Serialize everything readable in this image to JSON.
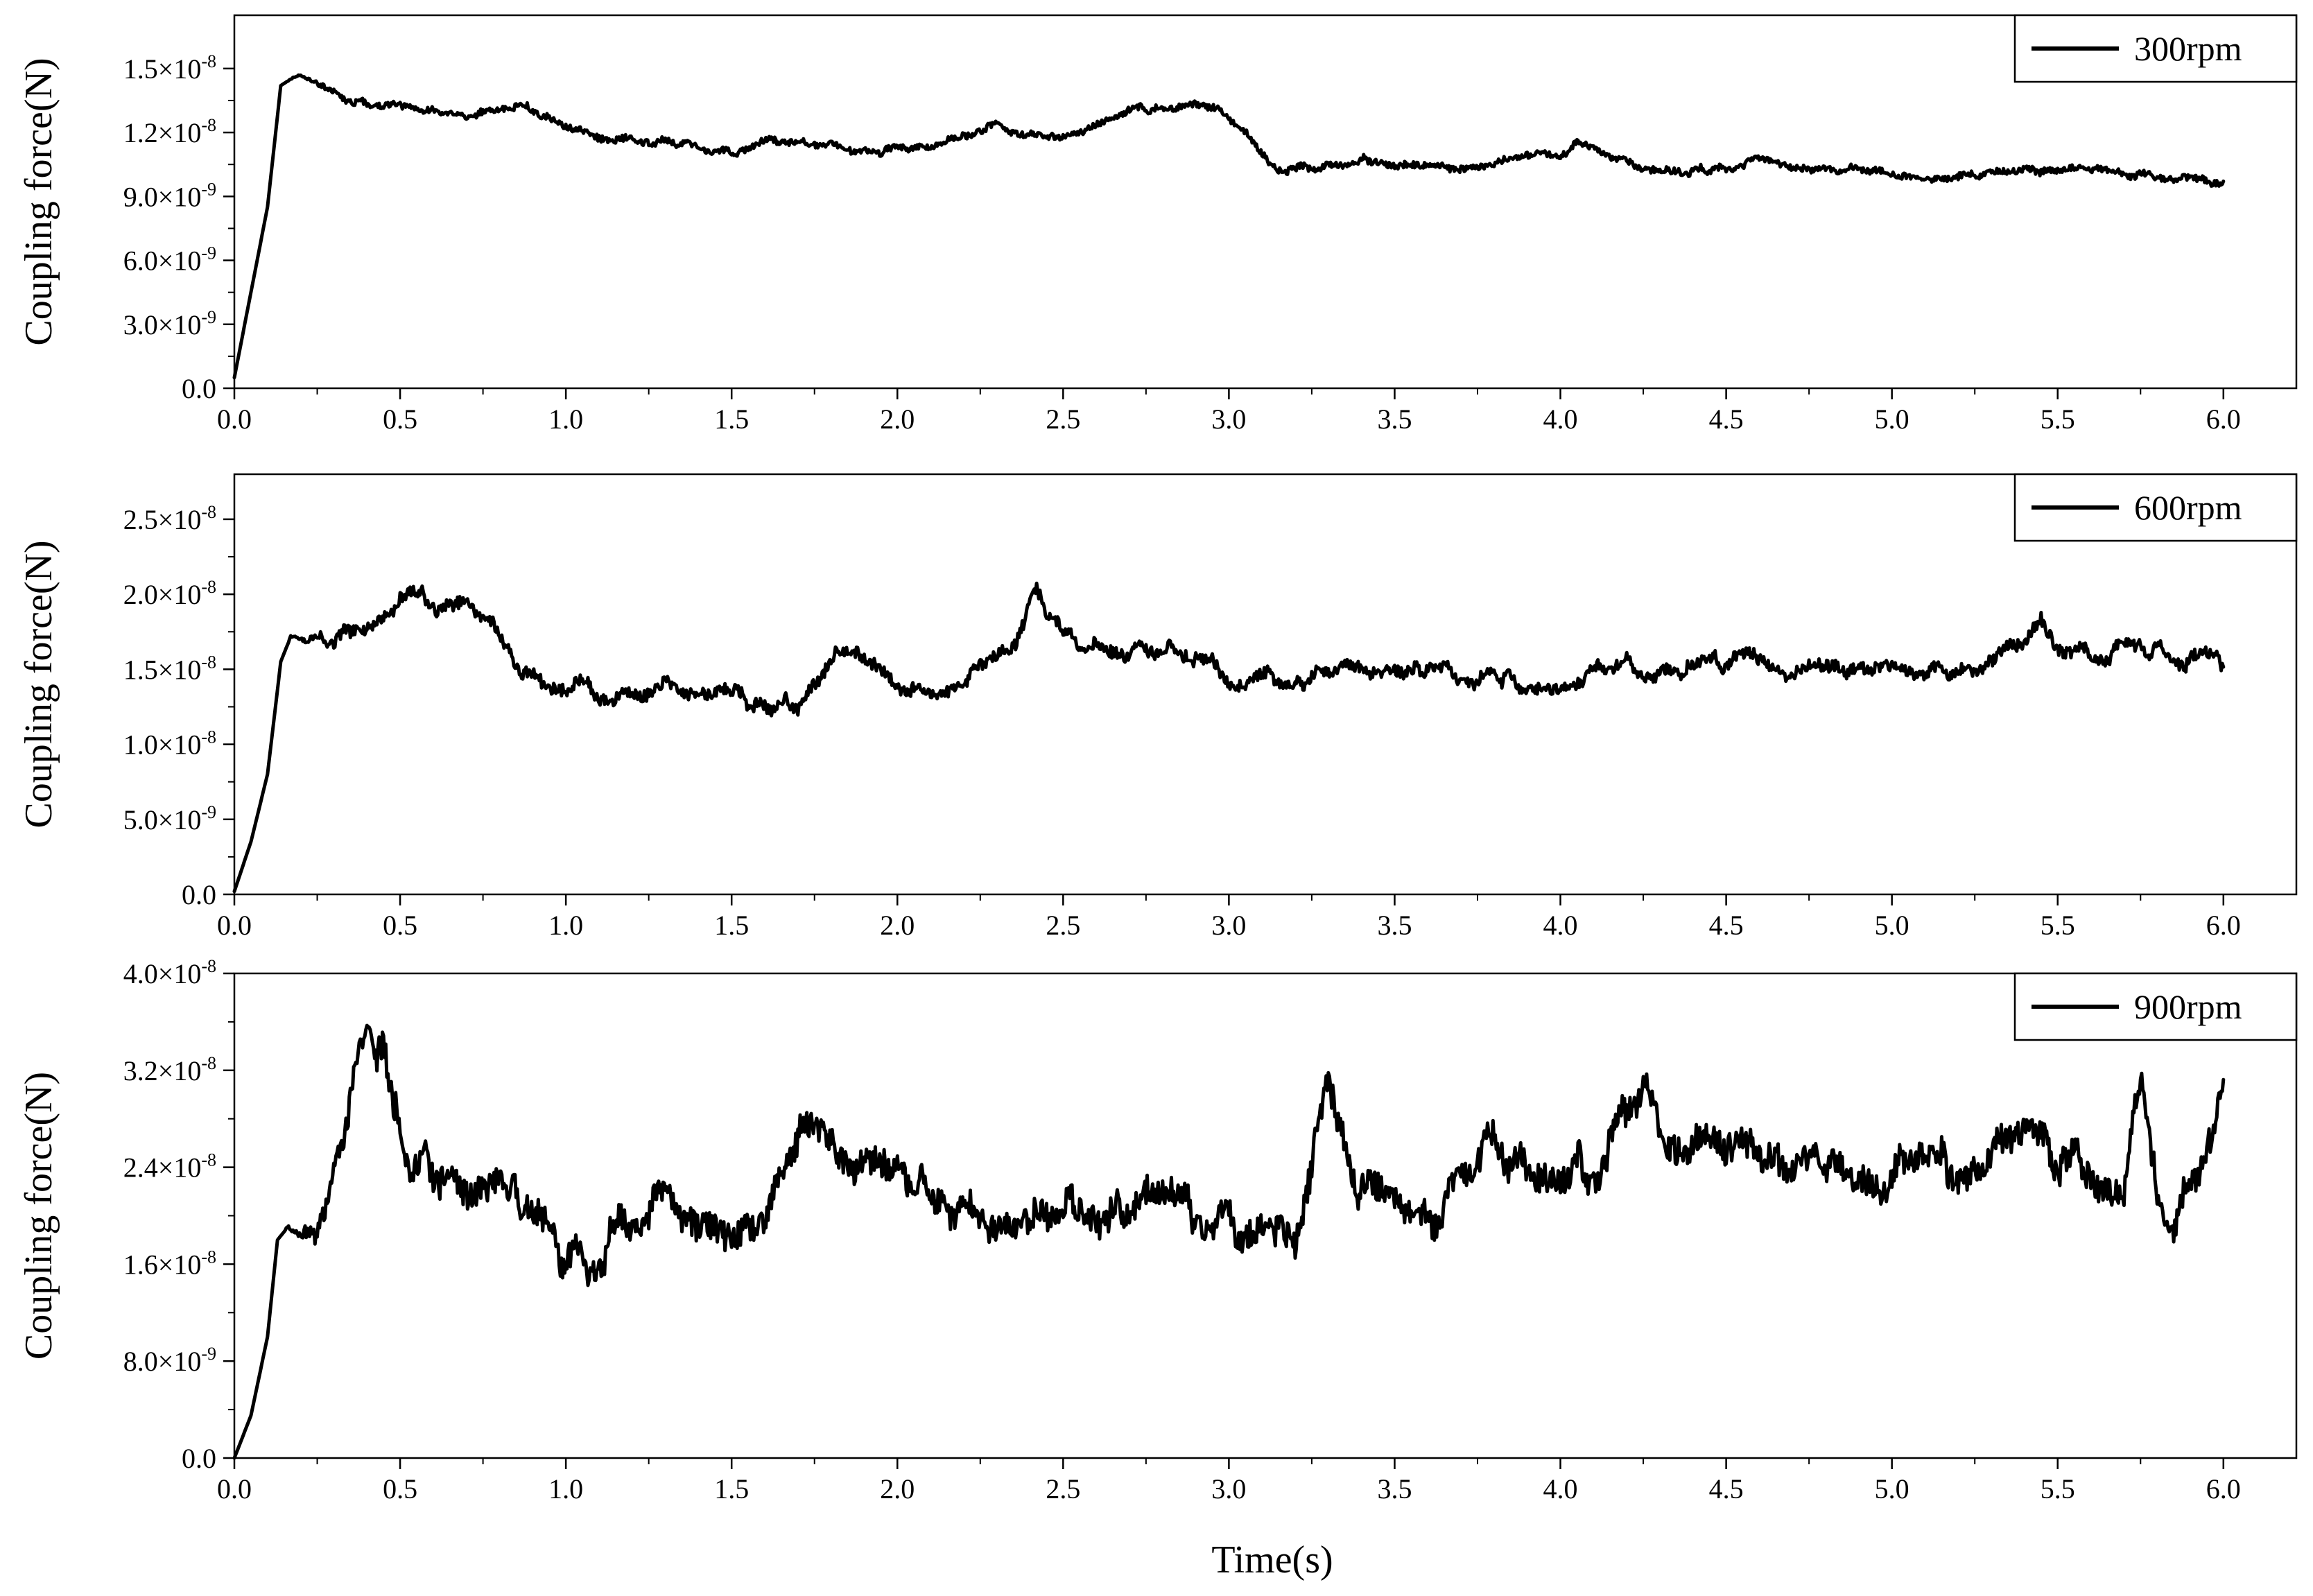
{
  "xlabel": "Time(s)",
  "chart_data": [
    {
      "type": "line",
      "ylabel": "Coupling force(N)",
      "xlim": [
        0,
        6.22
      ],
      "ylim": [
        0,
        1.75e-08
      ],
      "x_ticks": [
        "0.0",
        "0.5",
        "1.0",
        "1.5",
        "2.0",
        "2.5",
        "3.0",
        "3.5",
        "4.0",
        "4.5",
        "5.0",
        "5.5",
        "6.0"
      ],
      "y_tick_values": [
        0,
        3e-09,
        6e-09,
        9e-09,
        1.2e-08,
        1.5e-08
      ],
      "y_tick_labels": [
        {
          "mant": "0.0",
          "exp": ""
        },
        {
          "mant": "3.0×10",
          "exp": "-9"
        },
        {
          "mant": "6.0×10",
          "exp": "-9"
        },
        {
          "mant": "9.0×10",
          "exp": "-9"
        },
        {
          "mant": "1.2×10",
          "exp": "-8"
        },
        {
          "mant": "1.5×10",
          "exp": "-8"
        }
      ],
      "legend": "top-right",
      "series": [
        {
          "name": "300rpm",
          "color": "#000000",
          "seed": 3,
          "noise_amp": 2e-10,
          "noise_jitter": 1.5e-10,
          "x": [
            0,
            0.05,
            0.1,
            0.14,
            0.18,
            0.2,
            0.25,
            0.3,
            0.4,
            0.5,
            0.6,
            0.7,
            0.8,
            0.85,
            0.9,
            1.0,
            1.1,
            1.2,
            1.3,
            1.4,
            1.5,
            1.55,
            1.6,
            1.7,
            1.8,
            1.9,
            2.0,
            2.1,
            2.2,
            2.3,
            2.4,
            2.5,
            2.6,
            2.7,
            2.8,
            2.9,
            2.98,
            3.05,
            3.1,
            3.15,
            3.2,
            3.3,
            3.4,
            3.5,
            3.6,
            3.7,
            3.8,
            3.9,
            4.0,
            4.05,
            4.1,
            4.2,
            4.3,
            4.4,
            4.5,
            4.6,
            4.7,
            4.8,
            4.9,
            5.0,
            5.1,
            5.2,
            5.3,
            5.4,
            5.5,
            5.6,
            5.7,
            5.8,
            5.9,
            6.0
          ],
          "values": [
            5e-10,
            4.5e-09,
            8.5e-09,
            1.42e-08,
            1.46e-08,
            1.47e-08,
            1.42e-08,
            1.39e-08,
            1.33e-08,
            1.31e-08,
            1.3e-08,
            1.28e-08,
            1.29e-08,
            1.33e-08,
            1.3e-08,
            1.21e-08,
            1.18e-08,
            1.16e-08,
            1.16e-08,
            1.13e-08,
            1.1e-08,
            1.11e-08,
            1.16e-08,
            1.17e-08,
            1.15e-08,
            1.12e-08,
            1.12e-08,
            1.14e-08,
            1.18e-08,
            1.23e-08,
            1.2e-08,
            1.16e-08,
            1.24e-08,
            1.3e-08,
            1.32e-08,
            1.33e-08,
            1.3e-08,
            1.2e-08,
            1.1e-08,
            1.03e-08,
            1.02e-08,
            1.05e-08,
            1.07e-08,
            1.06e-08,
            1.05e-08,
            1.04e-08,
            1.05e-08,
            1.1e-08,
            1.1e-08,
            1.16e-08,
            1.12e-08,
            1.05e-08,
            1.04e-08,
            1.02e-08,
            1.03e-08,
            1.08e-08,
            1.03e-08,
            1.03e-08,
            1.02e-08,
            1.01e-08,
            9.9e-09,
            1e-08,
            1.01e-08,
            1.02e-08,
            1.02e-08,
            1.03e-08,
            1e-08,
            9.9e-09,
            9.8e-09,
            9.7e-09
          ]
        }
      ]
    },
    {
      "type": "line",
      "ylabel": "Coupling force(N)",
      "xlim": [
        0,
        6.22
      ],
      "ylim": [
        0,
        2.8e-08
      ],
      "x_ticks": [
        "0.0",
        "0.5",
        "1.0",
        "1.5",
        "2.0",
        "2.5",
        "3.0",
        "3.5",
        "4.0",
        "4.5",
        "5.0",
        "5.5",
        "6.0"
      ],
      "y_tick_values": [
        0,
        5e-09,
        1e-08,
        1.5e-08,
        2e-08,
        2.5e-08
      ],
      "y_tick_labels": [
        {
          "mant": "0.0",
          "exp": ""
        },
        {
          "mant": "5.0×10",
          "exp": "-9"
        },
        {
          "mant": "1.0×10",
          "exp": "-8"
        },
        {
          "mant": "1.5×10",
          "exp": "-8"
        },
        {
          "mant": "2.0×10",
          "exp": "-8"
        },
        {
          "mant": "2.5×10",
          "exp": "-8"
        }
      ],
      "legend": "top-right",
      "series": [
        {
          "name": "600rpm",
          "color": "#000000",
          "seed": 7,
          "noise_amp": 7e-10,
          "noise_jitter": 4e-10,
          "x": [
            0,
            0.05,
            0.1,
            0.14,
            0.17,
            0.2,
            0.25,
            0.3,
            0.4,
            0.5,
            0.6,
            0.7,
            0.75,
            0.8,
            0.85,
            0.9,
            1.0,
            1.1,
            1.2,
            1.3,
            1.4,
            1.5,
            1.6,
            1.7,
            1.75,
            1.82,
            1.9,
            2.0,
            2.1,
            2.2,
            2.3,
            2.38,
            2.42,
            2.45,
            2.5,
            2.6,
            2.7,
            2.8,
            2.9,
            3.0,
            3.1,
            3.2,
            3.3,
            3.4,
            3.5,
            3.6,
            3.7,
            3.8,
            3.9,
            4.0,
            4.1,
            4.2,
            4.3,
            4.4,
            4.5,
            4.6,
            4.7,
            4.8,
            4.9,
            5.0,
            5.1,
            5.2,
            5.3,
            5.4,
            5.45,
            5.5,
            5.6,
            5.7,
            5.8,
            5.9,
            6.0
          ],
          "values": [
            2e-10,
            3.5e-09,
            8e-09,
            1.55e-08,
            1.72e-08,
            1.7e-08,
            1.68e-08,
            1.7e-08,
            1.82e-08,
            1.98e-08,
            1.95e-08,
            1.9e-08,
            1.85e-08,
            1.7e-08,
            1.55e-08,
            1.45e-08,
            1.4e-08,
            1.33e-08,
            1.35e-08,
            1.4e-08,
            1.38e-08,
            1.32e-08,
            1.25e-08,
            1.28e-08,
            1.42e-08,
            1.7e-08,
            1.55e-08,
            1.42e-08,
            1.33e-08,
            1.42e-08,
            1.55e-08,
            1.75e-08,
            2.05e-08,
            1.9e-08,
            1.72e-08,
            1.65e-08,
            1.6e-08,
            1.65e-08,
            1.6e-08,
            1.45e-08,
            1.42e-08,
            1.45e-08,
            1.48e-08,
            1.52e-08,
            1.5e-08,
            1.48e-08,
            1.45e-08,
            1.44e-08,
            1.43e-08,
            1.42e-08,
            1.48e-08,
            1.52e-08,
            1.5e-08,
            1.48e-08,
            1.55e-08,
            1.58e-08,
            1.5e-08,
            1.52e-08,
            1.55e-08,
            1.52e-08,
            1.5e-08,
            1.48e-08,
            1.6e-08,
            1.7e-08,
            1.85e-08,
            1.62e-08,
            1.58e-08,
            1.65e-08,
            1.62e-08,
            1.58e-08,
            1.55e-08
          ]
        }
      ]
    },
    {
      "type": "line",
      "ylabel": "Coupling force(N)",
      "xlim": [
        0,
        6.22
      ],
      "ylim": [
        0,
        4e-08
      ],
      "x_ticks": [
        "0.0",
        "0.5",
        "1.0",
        "1.5",
        "2.0",
        "2.5",
        "3.0",
        "3.5",
        "4.0",
        "4.5",
        "5.0",
        "5.5",
        "6.0"
      ],
      "y_tick_values": [
        0,
        8e-09,
        1.6e-08,
        2.4e-08,
        3.2e-08,
        4e-08
      ],
      "y_tick_labels": [
        {
          "mant": "0.0",
          "exp": ""
        },
        {
          "mant": "8.0×10",
          "exp": "-9"
        },
        {
          "mant": "1.6×10",
          "exp": "-8"
        },
        {
          "mant": "2.4×10",
          "exp": "-8"
        },
        {
          "mant": "3.2×10",
          "exp": "-8"
        },
        {
          "mant": "4.0×10",
          "exp": "-8"
        }
      ],
      "legend": "top-right",
      "series": [
        {
          "name": "900rpm",
          "color": "#000000",
          "seed": 11,
          "noise_amp": 2.2e-09,
          "noise_jitter": 1.2e-09,
          "x": [
            0,
            0.05,
            0.1,
            0.13,
            0.16,
            0.2,
            0.25,
            0.3,
            0.35,
            0.4,
            0.45,
            0.5,
            0.55,
            0.6,
            0.7,
            0.8,
            0.9,
            0.95,
            1.0,
            1.05,
            1.1,
            1.2,
            1.3,
            1.4,
            1.5,
            1.6,
            1.7,
            1.8,
            1.9,
            2.0,
            2.1,
            2.2,
            2.3,
            2.4,
            2.5,
            2.6,
            2.7,
            2.8,
            2.9,
            3.0,
            3.1,
            3.2,
            3.25,
            3.3,
            3.35,
            3.4,
            3.5,
            3.6,
            3.7,
            3.8,
            3.9,
            4.0,
            4.1,
            4.2,
            4.25,
            4.3,
            4.4,
            4.5,
            4.6,
            4.7,
            4.8,
            4.9,
            5.0,
            5.1,
            5.2,
            5.3,
            5.4,
            5.5,
            5.6,
            5.7,
            5.75,
            5.8,
            5.85,
            5.9,
            6.0
          ],
          "values": [
            0,
            3.5e-09,
            1e-08,
            1.8e-08,
            1.9e-08,
            1.85e-08,
            1.9e-08,
            2.3e-08,
            3e-08,
            3.5e-08,
            3.3e-08,
            2.7e-08,
            2.35e-08,
            2.3e-08,
            2.25e-08,
            2.15e-08,
            2e-08,
            1.8e-08,
            1.6e-08,
            1.52e-08,
            1.7e-08,
            1.95e-08,
            2.1e-08,
            1.95e-08,
            1.85e-08,
            2e-08,
            2.7e-08,
            2.55e-08,
            2.4e-08,
            2.3e-08,
            2.2e-08,
            2.05e-08,
            2e-08,
            2.05e-08,
            2e-08,
            1.95e-08,
            2e-08,
            2.05e-08,
            1.95e-08,
            2e-08,
            1.95e-08,
            1.9e-08,
            2.5e-08,
            3.1e-08,
            2.6e-08,
            2.2e-08,
            2.15e-08,
            2e-08,
            2.45e-08,
            2.6e-08,
            2.4e-08,
            2.3e-08,
            2.45e-08,
            2.7e-08,
            3.2e-08,
            2.6e-08,
            2.5e-08,
            2.45e-08,
            2.55e-08,
            2.4e-08,
            2.45e-08,
            2.4e-08,
            2.35e-08,
            2.4e-08,
            2.45e-08,
            2.6e-08,
            2.7e-08,
            2.5e-08,
            2.4e-08,
            2.3e-08,
            3.1e-08,
            2.3e-08,
            1.9e-08,
            2.3e-08,
            3.1e-08
          ]
        }
      ]
    }
  ]
}
